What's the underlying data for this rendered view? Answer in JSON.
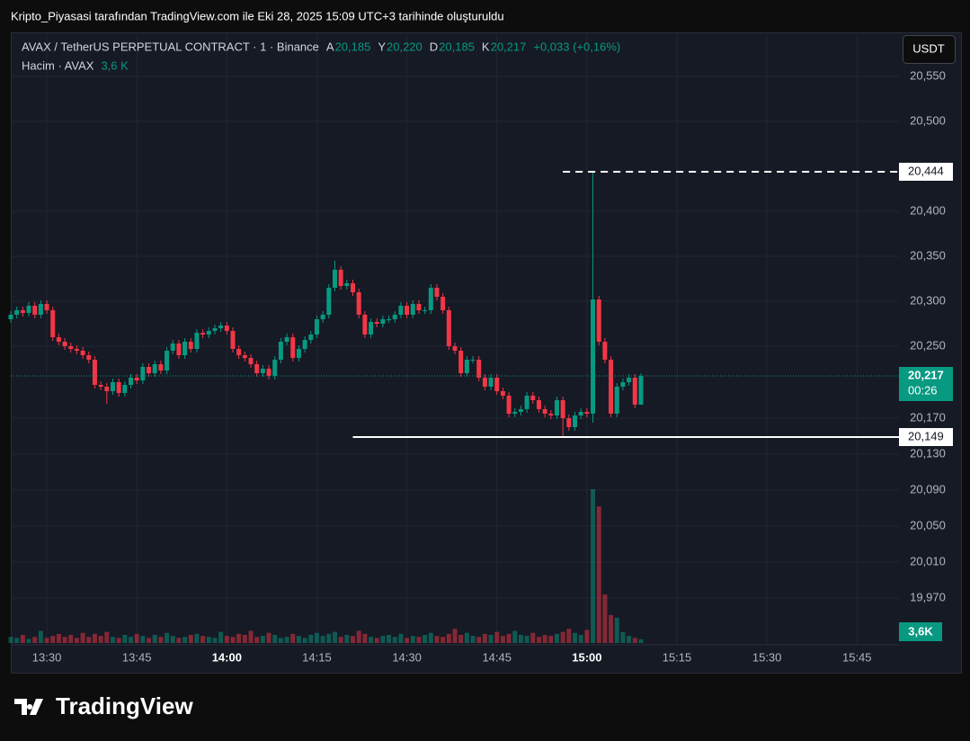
{
  "page": {
    "caption": "Kripto_Piyasasi tarafından TradingView.com ile Eki 28, 2025 15:09 UTC+3 tarihinde oluşturuldu",
    "brand": "TradingView"
  },
  "chart_data": {
    "type": "candlestick",
    "title": "AVAX / TetherUS PERPETUAL CONTRACT · 1 · Binance",
    "currency": "USDT",
    "ohlc_legend": [
      {
        "key": "A",
        "value": 20.185,
        "label": "20,185"
      },
      {
        "key": "Y",
        "value": 20.22,
        "label": "20,220"
      },
      {
        "key": "D",
        "value": 20.185,
        "label": "20,185"
      },
      {
        "key": "K",
        "value": 20.217,
        "label": "20,217"
      }
    ],
    "change_label": "+0,033 (+0,16%)",
    "x": [
      "13:24",
      "13:25",
      "13:26",
      "13:27",
      "13:28",
      "13:29",
      "13:30",
      "13:31",
      "13:32",
      "13:33",
      "13:34",
      "13:35",
      "13:36",
      "13:37",
      "13:38",
      "13:39",
      "13:40",
      "13:41",
      "13:42",
      "13:43",
      "13:44",
      "13:45",
      "13:46",
      "13:47",
      "13:48",
      "13:49",
      "13:50",
      "13:51",
      "13:52",
      "13:53",
      "13:54",
      "13:55",
      "13:56",
      "13:57",
      "13:58",
      "13:59",
      "14:00",
      "14:01",
      "14:02",
      "14:03",
      "14:04",
      "14:05",
      "14:06",
      "14:07",
      "14:08",
      "14:09",
      "14:10",
      "14:11",
      "14:12",
      "14:13",
      "14:14",
      "14:15",
      "14:16",
      "14:17",
      "14:18",
      "14:19",
      "14:20",
      "14:21",
      "14:22",
      "14:23",
      "14:24",
      "14:25",
      "14:26",
      "14:27",
      "14:28",
      "14:29",
      "14:30",
      "14:31",
      "14:32",
      "14:33",
      "14:34",
      "14:35",
      "14:36",
      "14:37",
      "14:38",
      "14:39",
      "14:40",
      "14:41",
      "14:42",
      "14:43",
      "14:44",
      "14:45",
      "14:46",
      "14:47",
      "14:48",
      "14:49",
      "14:50",
      "14:51",
      "14:52",
      "14:53",
      "14:54",
      "14:55",
      "14:56",
      "14:57",
      "14:58",
      "14:59",
      "15:00",
      "15:01",
      "15:02",
      "15:03",
      "15:04",
      "15:05",
      "15:06",
      "15:07",
      "15:08",
      "15:09"
    ],
    "open": [
      20.28,
      20.285,
      20.29,
      20.287,
      20.295,
      20.285,
      20.297,
      20.29,
      20.26,
      20.255,
      20.25,
      20.247,
      20.245,
      20.24,
      20.235,
      20.207,
      20.205,
      20.2,
      20.21,
      20.198,
      20.207,
      20.215,
      20.212,
      20.227,
      20.22,
      20.23,
      20.223,
      20.245,
      20.253,
      20.24,
      20.255,
      20.247,
      20.265,
      20.263,
      20.267,
      20.27,
      20.273,
      20.267,
      20.247,
      20.24,
      20.237,
      20.23,
      20.22,
      20.225,
      20.217,
      20.235,
      20.255,
      20.26,
      20.237,
      20.247,
      20.257,
      20.263,
      20.28,
      20.285,
      20.315,
      20.335,
      20.317,
      20.32,
      20.31,
      20.285,
      20.263,
      20.277,
      20.275,
      20.28,
      20.28,
      20.285,
      20.295,
      20.285,
      20.297,
      20.29,
      20.29,
      20.315,
      20.305,
      20.29,
      20.25,
      20.245,
      20.22,
      20.235,
      20.235,
      20.215,
      20.205,
      20.215,
      20.2,
      20.195,
      20.175,
      20.177,
      20.18,
      20.195,
      20.19,
      20.18,
      20.175,
      20.173,
      20.19,
      20.17,
      20.16,
      20.173,
      20.177,
      20.175,
      20.302,
      20.255,
      20.235,
      20.175,
      20.205,
      20.21,
      20.215,
      20.185
    ],
    "high": [
      20.289,
      20.294,
      20.294,
      20.299,
      20.299,
      20.301,
      20.301,
      20.294,
      20.264,
      20.259,
      20.254,
      20.251,
      20.249,
      20.244,
      20.239,
      20.211,
      20.209,
      20.214,
      20.214,
      20.211,
      20.219,
      20.219,
      20.231,
      20.231,
      20.234,
      20.234,
      20.249,
      20.257,
      20.257,
      20.259,
      20.259,
      20.269,
      20.269,
      20.271,
      20.274,
      20.277,
      20.277,
      20.271,
      20.251,
      20.244,
      20.241,
      20.234,
      20.229,
      20.229,
      20.239,
      20.259,
      20.264,
      20.264,
      20.251,
      20.261,
      20.267,
      20.284,
      20.289,
      20.319,
      20.345,
      20.339,
      20.324,
      20.324,
      20.314,
      20.289,
      20.281,
      20.281,
      20.284,
      20.284,
      20.289,
      20.299,
      20.299,
      20.301,
      20.301,
      20.294,
      20.319,
      20.319,
      20.309,
      20.294,
      20.254,
      20.249,
      20.239,
      20.239,
      20.239,
      20.219,
      20.219,
      20.219,
      20.204,
      20.199,
      20.181,
      20.184,
      20.199,
      20.199,
      20.194,
      20.184,
      20.179,
      20.194,
      20.194,
      20.174,
      20.177,
      20.181,
      20.181,
      20.444,
      20.306,
      20.259,
      20.239,
      20.209,
      20.214,
      20.219,
      20.219,
      20.22
    ],
    "low": [
      20.276,
      20.281,
      20.283,
      20.283,
      20.281,
      20.281,
      20.286,
      20.256,
      20.251,
      20.246,
      20.243,
      20.241,
      20.236,
      20.231,
      20.203,
      20.201,
      20.186,
      20.196,
      20.194,
      20.194,
      20.203,
      20.208,
      20.208,
      20.216,
      20.216,
      20.219,
      20.219,
      20.241,
      20.236,
      20.236,
      20.243,
      20.243,
      20.259,
      20.259,
      20.263,
      20.266,
      20.263,
      20.243,
      20.236,
      20.233,
      20.226,
      20.216,
      20.216,
      20.213,
      20.213,
      20.231,
      20.251,
      20.233,
      20.233,
      20.243,
      20.253,
      20.259,
      20.276,
      20.281,
      20.311,
      20.313,
      20.313,
      20.306,
      20.281,
      20.259,
      20.259,
      20.271,
      20.271,
      20.276,
      20.276,
      20.281,
      20.281,
      20.281,
      20.286,
      20.286,
      20.286,
      20.301,
      20.286,
      20.246,
      20.241,
      20.216,
      20.216,
      20.231,
      20.211,
      20.201,
      20.201,
      20.196,
      20.191,
      20.171,
      20.171,
      20.173,
      20.176,
      20.186,
      20.176,
      20.171,
      20.169,
      20.169,
      20.149,
      20.156,
      20.156,
      20.169,
      20.171,
      20.165,
      20.251,
      20.231,
      20.171,
      20.171,
      20.201,
      20.206,
      20.181,
      20.185
    ],
    "close": [
      20.285,
      20.29,
      20.287,
      20.295,
      20.285,
      20.297,
      20.29,
      20.26,
      20.255,
      20.25,
      20.247,
      20.245,
      20.24,
      20.235,
      20.207,
      20.205,
      20.2,
      20.21,
      20.198,
      20.207,
      20.215,
      20.212,
      20.227,
      20.22,
      20.23,
      20.223,
      20.245,
      20.253,
      20.24,
      20.255,
      20.247,
      20.265,
      20.263,
      20.267,
      20.27,
      20.273,
      20.267,
      20.247,
      20.24,
      20.237,
      20.23,
      20.22,
      20.225,
      20.217,
      20.235,
      20.255,
      20.26,
      20.237,
      20.247,
      20.257,
      20.263,
      20.28,
      20.285,
      20.315,
      20.335,
      20.317,
      20.32,
      20.31,
      20.285,
      20.263,
      20.277,
      20.275,
      20.28,
      20.28,
      20.285,
      20.295,
      20.285,
      20.297,
      20.29,
      20.29,
      20.315,
      20.305,
      20.29,
      20.25,
      20.245,
      20.22,
      20.235,
      20.235,
      20.215,
      20.205,
      20.215,
      20.2,
      20.195,
      20.175,
      20.177,
      20.18,
      20.195,
      20.19,
      20.18,
      20.175,
      20.173,
      20.19,
      20.17,
      20.16,
      20.173,
      20.177,
      20.175,
      20.302,
      20.255,
      20.235,
      20.175,
      20.205,
      20.21,
      20.215,
      20.185,
      20.217
    ],
    "up_color": "#089981",
    "down_color": "#f23645",
    "xlim": [
      "13:24",
      "15:52"
    ],
    "xticks": [
      "13:30",
      "13:45",
      "14:00",
      "14:15",
      "14:30",
      "14:45",
      "15:00",
      "15:15",
      "15:30",
      "15:45"
    ],
    "ylim": [
      19.89,
      20.599
    ],
    "yticks": [
      {
        "value": 20.55,
        "label": "20,550"
      },
      {
        "value": 20.5,
        "label": "20,500"
      },
      {
        "value": 20.4,
        "label": "20,400"
      },
      {
        "value": 20.35,
        "label": "20,350"
      },
      {
        "value": 20.3,
        "label": "20,300"
      },
      {
        "value": 20.25,
        "label": "20,250"
      },
      {
        "value": 20.17,
        "label": "20,170"
      },
      {
        "value": 20.13,
        "label": "20,130"
      },
      {
        "value": 20.09,
        "label": "20,090"
      },
      {
        "value": 20.05,
        "label": "20,050"
      },
      {
        "value": 20.01,
        "label": "20,010"
      },
      {
        "value": 19.97,
        "label": "19,970"
      }
    ],
    "grid": true,
    "hlines": [
      {
        "value": 20.444,
        "label": "20,444",
        "style": "dashed",
        "start": "14:56"
      },
      {
        "value": 20.149,
        "label": "20,149",
        "style": "solid",
        "start": "14:21"
      }
    ],
    "last_price": {
      "value": 20.217,
      "label": "20,217",
      "countdown": "00:26"
    },
    "volume": {
      "name": "Hacim · AVAX",
      "legend_label": "3,6 K",
      "last_label": "3,6K",
      "vlim": [
        0,
        160
      ],
      "values": [
        6,
        5,
        8,
        4,
        6,
        12,
        5,
        7,
        9,
        6,
        8,
        5,
        10,
        6,
        9,
        7,
        11,
        6,
        5,
        8,
        6,
        9,
        7,
        5,
        8,
        6,
        10,
        7,
        5,
        6,
        8,
        9,
        7,
        6,
        5,
        11,
        7,
        6,
        9,
        8,
        12,
        6,
        7,
        10,
        8,
        5,
        6,
        9,
        7,
        5,
        8,
        10,
        7,
        9,
        11,
        6,
        8,
        7,
        12,
        9,
        6,
        5,
        7,
        8,
        6,
        9,
        5,
        7,
        6,
        8,
        10,
        7,
        6,
        9,
        14,
        8,
        10,
        7,
        6,
        9,
        8,
        11,
        7,
        9,
        12,
        8,
        7,
        10,
        6,
        8,
        7,
        9,
        11,
        14,
        10,
        8,
        13,
        152,
        135,
        48,
        27.6,
        25,
        10.7,
        7,
        5,
        3.6
      ]
    }
  }
}
